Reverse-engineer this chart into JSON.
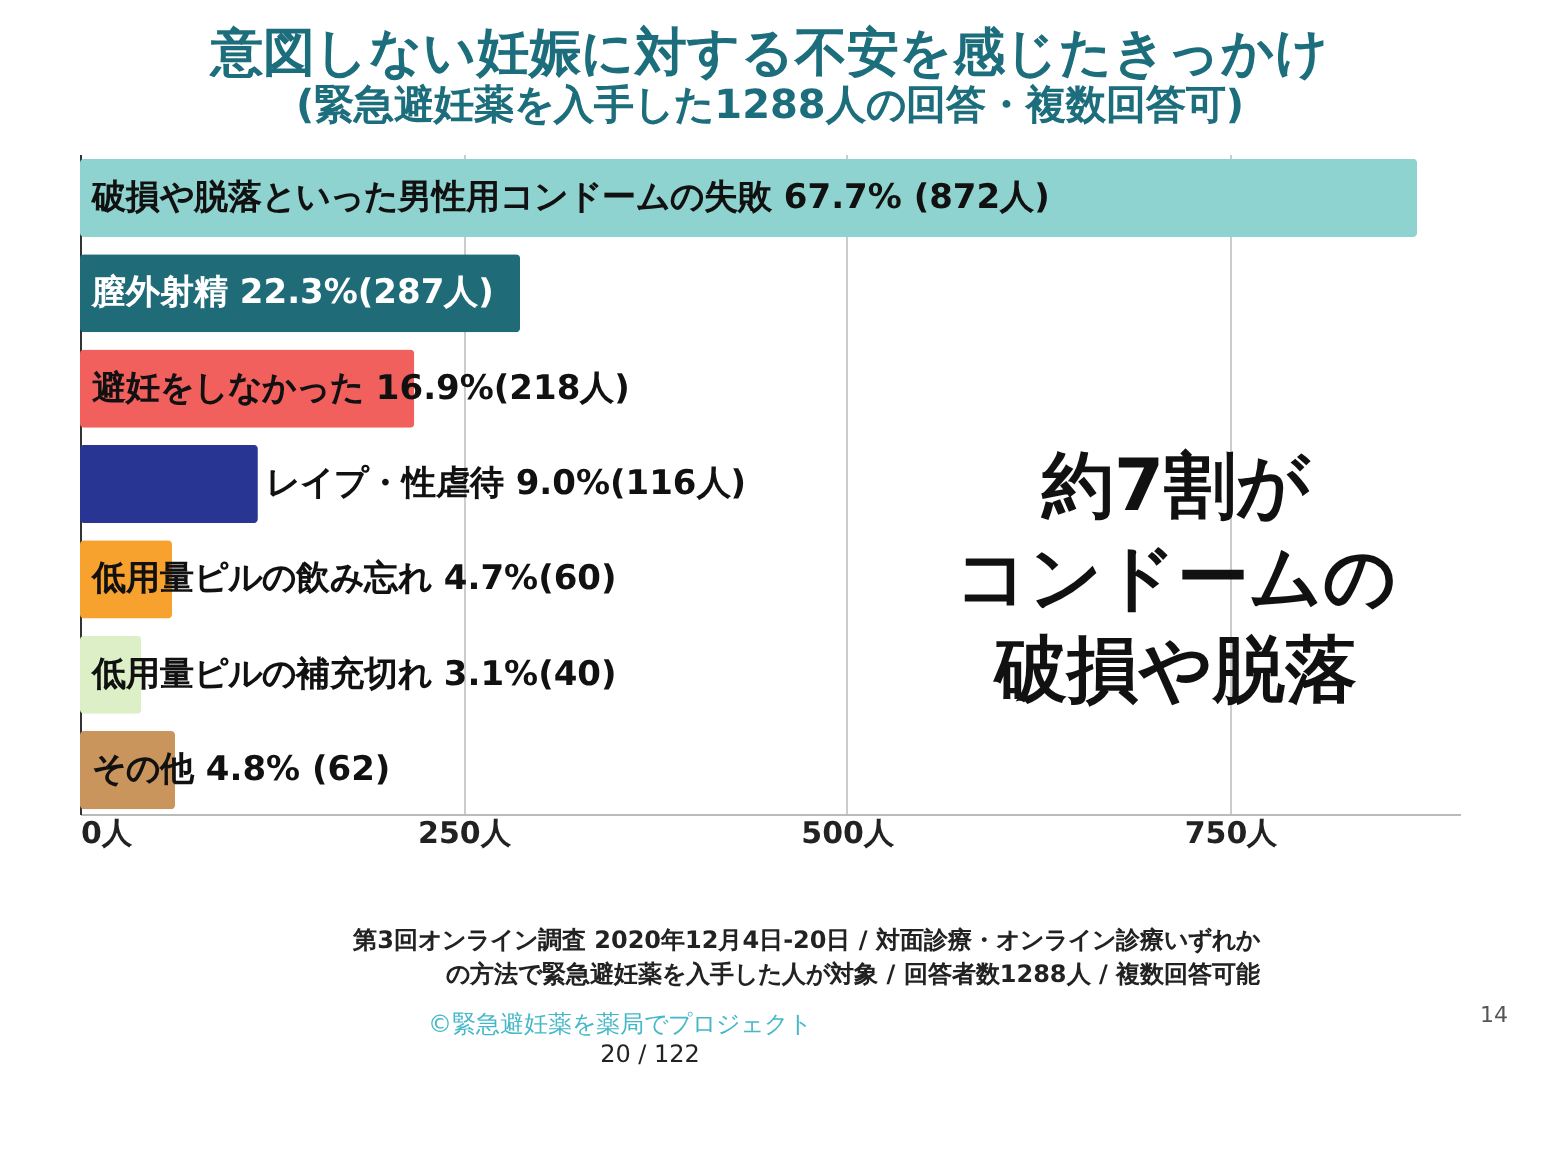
{
  "chart_data": {
    "type": "bar",
    "orientation": "horizontal",
    "title": "意図しない妊娠に対する不安を感じたきっかけ",
    "subtitle": "(緊急避妊薬を入手した1288人の回答・複数回答可)",
    "categories": [
      "破損や脱落といった男性用コンドームの失敗",
      "膣外射精",
      "避妊をしなかった",
      "レイプ・性虐待",
      "低用量ピルの飲み忘れ",
      "低用量ピルの補充切れ",
      "その他"
    ],
    "values": [
      872,
      287,
      218,
      116,
      60,
      40,
      62
    ],
    "value_labels": [
      "67.7% (872人)",
      "22.3%(287人)",
      "16.9%(218人)",
      "9.0%(116人)",
      "4.7%(60)",
      "3.1%(40)",
      "4.8% (62)"
    ],
    "colors": [
      "#8ed3cf",
      "#1f6b78",
      "#f2605e",
      "#283593",
      "#f7a12e",
      "#dcefc6",
      "#c9955c"
    ],
    "xlim": [
      0,
      900
    ],
    "xticks": [
      {
        "value": 0,
        "label": "0人"
      },
      {
        "value": 250,
        "label": "250人"
      },
      {
        "value": 500,
        "label": "500人"
      },
      {
        "value": 750,
        "label": "750人"
      }
    ],
    "grid": "x",
    "tick_labels": "x",
    "annotations": [
      "約7割が",
      "コンドームの",
      "破損や脱落",
      "第3回オンライン調査 2020年12月4日-20日 / 対面診療・オンライン診療いずれか",
      "の方法で緊急避妊薬を入手した人が対象 / 回答者数1288人 / 複数回答可能",
      "©緊急避妊薬を薬局でプロジェクト",
      "20 / 122",
      "14"
    ]
  }
}
